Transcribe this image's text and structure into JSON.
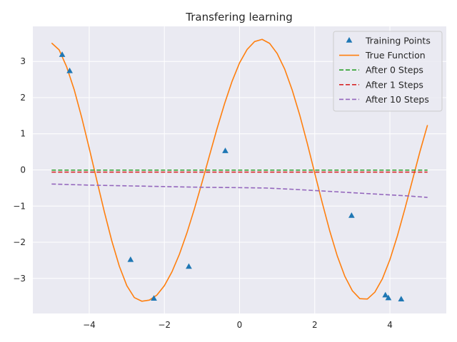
{
  "chart_data": {
    "type": "line",
    "title": "Transfering learning",
    "xlabel": "",
    "ylabel": "",
    "xlim": [
      -5.5,
      5.5
    ],
    "ylim": [
      -3.97,
      3.97
    ],
    "xticks": [
      -4,
      -2,
      0,
      2,
      4
    ],
    "yticks": [
      -3,
      -2,
      -1,
      0,
      1,
      2,
      3
    ],
    "xtick_labels": [
      "−4",
      "−2",
      "0",
      "2",
      "4"
    ],
    "ytick_labels": [
      "−3",
      "−2",
      "−1",
      "0",
      "1",
      "2",
      "3"
    ],
    "grid": true,
    "legend_position": "top-right",
    "legend": [
      "Training Points",
      "True Function",
      "After 0 Steps",
      "After 1 Steps",
      "After 10 Steps"
    ],
    "series": [
      {
        "name": "Training Points",
        "kind": "scatter",
        "marker": "triangle",
        "color": "#1f77b4",
        "x": [
          -4.72,
          -4.52,
          -2.9,
          -2.28,
          -1.35,
          -0.38,
          2.98,
          3.88,
          3.96,
          4.3
        ],
        "y": [
          3.18,
          2.73,
          -2.49,
          -3.56,
          -2.68,
          0.52,
          -1.27,
          -3.47,
          -3.55,
          -3.58
        ]
      },
      {
        "name": "True Function",
        "kind": "line",
        "color": "#ff7f0e",
        "dash": "solid",
        "x": [
          -5.0,
          -4.8,
          -4.6,
          -4.4,
          -4.2,
          -4.0,
          -3.8,
          -3.6,
          -3.4,
          -3.2,
          -3.0,
          -2.8,
          -2.6,
          -2.4,
          -2.2,
          -2.0,
          -1.8,
          -1.6,
          -1.4,
          -1.2,
          -1.0,
          -0.8,
          -0.6,
          -0.4,
          -0.2,
          0.0,
          0.2,
          0.4,
          0.6,
          0.8,
          1.0,
          1.2,
          1.4,
          1.6,
          1.8,
          2.0,
          2.2,
          2.4,
          2.6,
          2.8,
          3.0,
          3.2,
          3.4,
          3.6,
          3.8,
          4.0,
          4.2,
          4.4,
          4.6,
          4.8,
          5.0
        ],
        "y": [
          3.51,
          3.32,
          2.85,
          2.22,
          1.45,
          0.6,
          -0.28,
          -1.15,
          -1.96,
          -2.66,
          -3.2,
          -3.53,
          -3.63,
          -3.6,
          -3.46,
          -3.2,
          -2.82,
          -2.33,
          -1.74,
          -1.07,
          -0.35,
          0.4,
          1.14,
          1.83,
          2.45,
          2.96,
          3.33,
          3.55,
          3.61,
          3.5,
          3.22,
          2.79,
          2.21,
          1.52,
          0.74,
          -0.09,
          -0.91,
          -1.69,
          -2.38,
          -2.94,
          -3.34,
          -3.56,
          -3.57,
          -3.38,
          -3.01,
          -2.48,
          -1.82,
          -1.07,
          -0.28,
          0.51,
          1.24
        ]
      },
      {
        "name": "After 0 Steps",
        "kind": "line",
        "color": "#2ca02c",
        "dash": "dashed",
        "x": [
          -5.0,
          5.0
        ],
        "y": [
          -0.005,
          -0.005
        ]
      },
      {
        "name": "After 1 Steps",
        "kind": "line",
        "color": "#d62728",
        "dash": "dashed",
        "x": [
          -5.0,
          5.0
        ],
        "y": [
          -0.06,
          -0.06
        ]
      },
      {
        "name": "After 10 Steps",
        "kind": "line",
        "color": "#9467bd",
        "dash": "dashed",
        "x": [
          -5.0,
          -4.0,
          -3.0,
          -2.0,
          -1.0,
          0.0,
          0.7,
          1.5,
          2.0,
          2.5,
          3.0,
          3.5,
          4.0,
          4.5,
          5.0
        ],
        "y": [
          -0.39,
          -0.42,
          -0.44,
          -0.46,
          -0.48,
          -0.49,
          -0.5,
          -0.54,
          -0.57,
          -0.6,
          -0.63,
          -0.66,
          -0.69,
          -0.72,
          -0.76
        ]
      }
    ],
    "colors": {
      "plot_background": "#eaeaf2",
      "grid": "#ffffff",
      "text": "#262626"
    }
  }
}
